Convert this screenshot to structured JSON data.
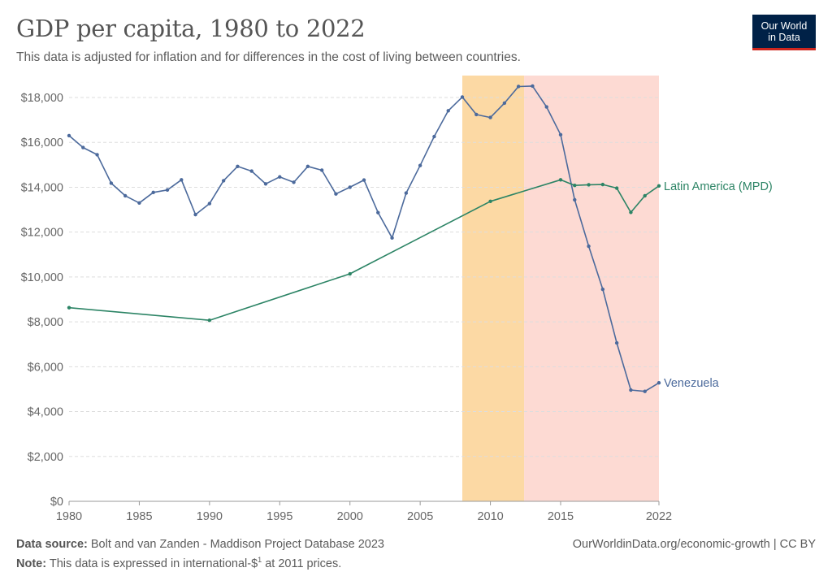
{
  "header": {
    "title": "GDP per capita, 1980 to 2022",
    "subtitle": "This data is adjusted for inflation and for differences in the cost of living between countries."
  },
  "logo": {
    "line1": "Our World",
    "line2": "in Data",
    "bg_color": "#002147",
    "accent_color": "#ce261e"
  },
  "footer": {
    "source_label": "Data source:",
    "source_text": "Bolt and van Zanden - Maddison Project Database 2023",
    "note_label": "Note:",
    "note_text_before": "This data is expressed in international-$",
    "note_sup": "1",
    "note_text_after": " at 2011 prices.",
    "url_text": "OurWorldinData.org/economic-growth | CC BY"
  },
  "chart_data": {
    "type": "line",
    "xlim": [
      1980,
      2022
    ],
    "ylim": [
      0,
      19000
    ],
    "x_ticks": [
      1980,
      1985,
      1990,
      1995,
      2000,
      2005,
      2010,
      2015,
      2022
    ],
    "y_ticks": [
      0,
      2000,
      4000,
      6000,
      8000,
      10000,
      12000,
      14000,
      16000,
      18000
    ],
    "y_tick_labels": [
      "$0",
      "$2,000",
      "$4,000",
      "$6,000",
      "$8,000",
      "$10,000",
      "$12,000",
      "$14,000",
      "$16,000",
      "$18,000"
    ],
    "grid": "horizontal dashed",
    "highlight_bands": [
      {
        "from": 2008,
        "to": 2012.4,
        "color": "#fcd9a4"
      },
      {
        "from": 2012.4,
        "to": 2022,
        "color": "#fddad3"
      }
    ],
    "series": [
      {
        "name": "Venezuela",
        "color": "#4c6a9c",
        "x": [
          1980,
          1981,
          1982,
          1983,
          1984,
          1985,
          1986,
          1987,
          1988,
          1989,
          1990,
          1991,
          1992,
          1993,
          1994,
          1995,
          1996,
          1997,
          1998,
          1999,
          2000,
          2001,
          2002,
          2003,
          2004,
          2005,
          2006,
          2007,
          2008,
          2009,
          2010,
          2011,
          2012,
          2013,
          2014,
          2015,
          2016,
          2017,
          2018,
          2019,
          2020,
          2021,
          2022
        ],
        "y": [
          16300,
          15770,
          15450,
          14180,
          13620,
          13300,
          13770,
          13880,
          14330,
          12780,
          13270,
          14290,
          14930,
          14720,
          14150,
          14460,
          14220,
          14930,
          14760,
          13700,
          14000,
          14320,
          12870,
          11740,
          13740,
          14970,
          16260,
          17410,
          18020,
          17240,
          17110,
          17750,
          18490,
          18510,
          17580,
          16340,
          13440,
          11370,
          9450,
          7060,
          4960,
          4900,
          5280
        ]
      },
      {
        "name": "Latin America (MPD)",
        "color": "#2c8465",
        "x": [
          1980,
          1990,
          2000,
          2010,
          2015,
          2016,
          2017,
          2018,
          2019,
          2020,
          2021,
          2022
        ],
        "y": [
          8630,
          8070,
          10140,
          13370,
          14330,
          14080,
          14110,
          14120,
          13960,
          12880,
          13620,
          14060
        ]
      }
    ]
  }
}
